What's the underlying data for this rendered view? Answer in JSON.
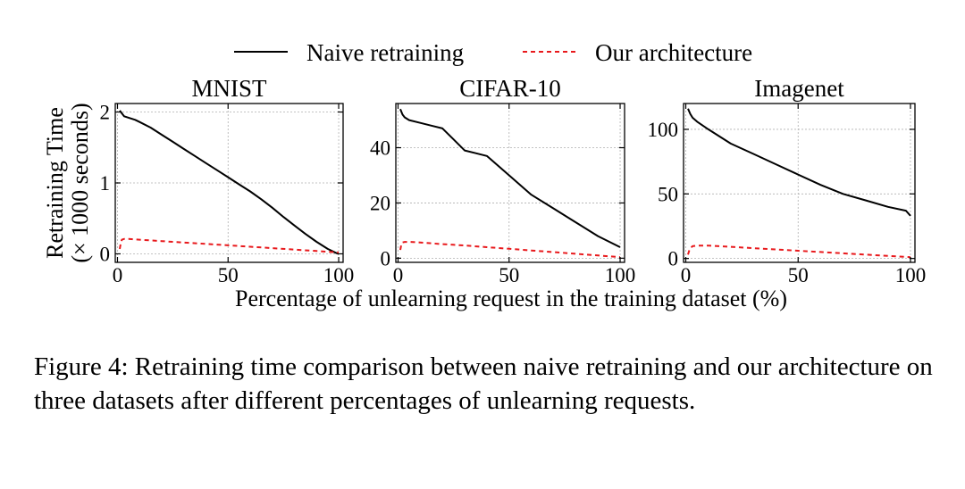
{
  "legend": {
    "placement": "top-center",
    "entries": [
      {
        "name": "Naive retraining",
        "color": "#000000",
        "style": "solid"
      },
      {
        "name": "Our architecture",
        "color": "#e8191c",
        "style": "dashed"
      }
    ]
  },
  "shared_labels": {
    "ylabel_line1": "Retraining Time",
    "ylabel_line2": "(× 1000 seconds)",
    "xlabel": "Percentage of unlearning request in the training dataset (%)"
  },
  "chart_data": [
    {
      "type": "line",
      "title": "MNIST",
      "xlim": [
        -1,
        102
      ],
      "ylim": [
        -0.12,
        2.12
      ],
      "xticks": [
        0,
        50,
        100
      ],
      "yticks": [
        0,
        1,
        2
      ],
      "grid": true,
      "series": [
        {
          "name": "Naive retraining",
          "x": [
            1,
            3,
            5,
            8,
            10,
            15,
            20,
            25,
            30,
            35,
            40,
            45,
            50,
            55,
            60,
            65,
            70,
            75,
            80,
            85,
            90,
            95,
            99,
            100
          ],
          "y": [
            2.02,
            1.94,
            1.92,
            1.89,
            1.86,
            1.78,
            1.68,
            1.58,
            1.48,
            1.38,
            1.28,
            1.18,
            1.08,
            0.98,
            0.88,
            0.77,
            0.65,
            0.52,
            0.4,
            0.28,
            0.17,
            0.07,
            0.01,
            0.0
          ]
        },
        {
          "name": "Our architecture",
          "x": [
            1,
            1.5,
            2,
            3,
            5,
            10,
            20,
            30,
            40,
            50,
            60,
            70,
            80,
            90,
            100
          ],
          "y": [
            0.07,
            0.15,
            0.2,
            0.21,
            0.21,
            0.2,
            0.18,
            0.16,
            0.14,
            0.12,
            0.1,
            0.08,
            0.06,
            0.04,
            0.02
          ]
        }
      ]
    },
    {
      "type": "line",
      "title": "CIFAR-10",
      "xlim": [
        -1,
        102
      ],
      "ylim": [
        -1.5,
        56
      ],
      "xticks": [
        0,
        50,
        100
      ],
      "yticks": [
        0,
        20,
        40
      ],
      "grid": true,
      "series": [
        {
          "name": "Naive retraining",
          "x": [
            1,
            2,
            3,
            5,
            10,
            15,
            20,
            25,
            30,
            35,
            40,
            50,
            60,
            70,
            80,
            90,
            100
          ],
          "y": [
            54,
            52,
            51,
            50,
            49,
            48,
            47,
            43,
            39,
            38,
            37,
            30,
            23,
            18,
            13,
            8,
            4
          ]
        },
        {
          "name": "Our architecture",
          "x": [
            1,
            1.5,
            2,
            3,
            5,
            10,
            20,
            30,
            40,
            50,
            60,
            70,
            80,
            90,
            100
          ],
          "y": [
            3.0,
            5.0,
            5.7,
            5.9,
            5.9,
            5.7,
            5.1,
            4.6,
            4.0,
            3.4,
            2.8,
            2.2,
            1.6,
            1.0,
            0.4
          ]
        }
      ]
    },
    {
      "type": "line",
      "title": "Imagenet",
      "xlim": [
        -1,
        102
      ],
      "ylim": [
        -3,
        120
      ],
      "xticks": [
        0,
        50,
        100
      ],
      "yticks": [
        0,
        50,
        100
      ],
      "grid": true,
      "series": [
        {
          "name": "Naive retraining",
          "x": [
            1,
            2,
            3,
            5,
            10,
            20,
            30,
            40,
            50,
            60,
            70,
            80,
            90,
            98,
            100
          ],
          "y": [
            116,
            112,
            109,
            106,
            100,
            89,
            81,
            73,
            65,
            57,
            50,
            45,
            40,
            37,
            33
          ]
        },
        {
          "name": "Our architecture",
          "x": [
            1,
            1.5,
            2,
            3,
            5,
            10,
            20,
            30,
            40,
            50,
            60,
            70,
            80,
            90,
            100
          ],
          "y": [
            3,
            6,
            8,
            9.5,
            10,
            10,
            9,
            8,
            7,
            6,
            5,
            4,
            3,
            2,
            1
          ]
        }
      ]
    }
  ],
  "caption": "Figure 4: Retraining time comparison between naive retraining and our architecture on three datasets after different percentages of unlearning requests."
}
